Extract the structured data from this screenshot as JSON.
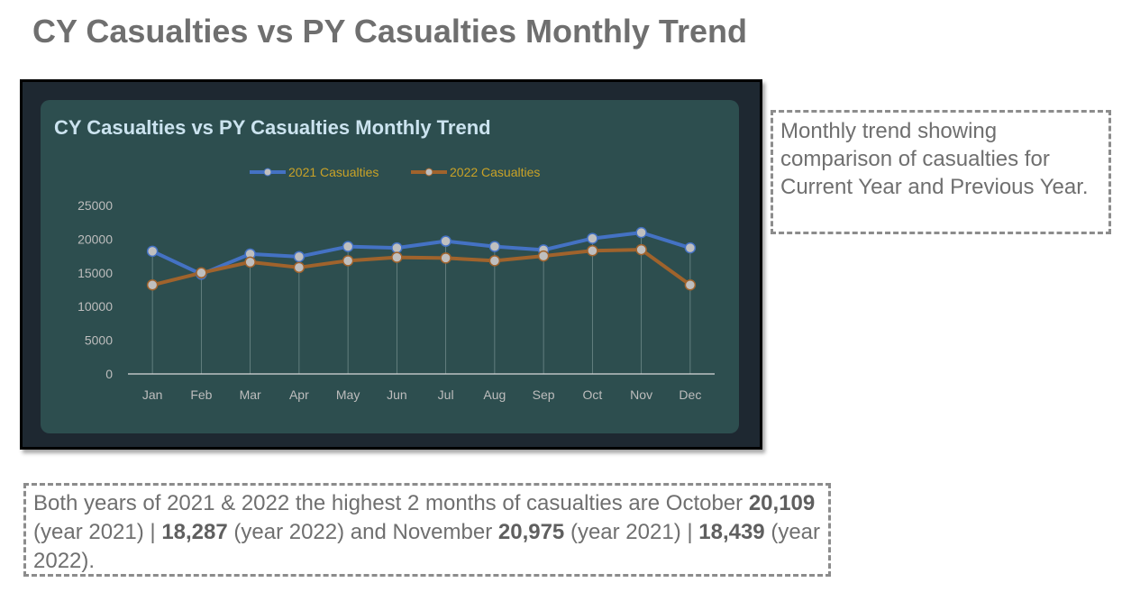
{
  "page": {
    "title": "CY Casualties vs PY Casualties Monthly Trend"
  },
  "notes": {
    "right_text": "Monthly trend showing comparison of casualties for Current Year and Previous Year.",
    "bottom": {
      "p1": "Both years of 2021 & 2022 the highest 2 months of casualties are October",
      "v1": "20,109",
      "p2": " (year 2021) | ",
      "v2": "18,287",
      "p3": " (year 2022) and November ",
      "v3": "20,975",
      "p4": " (year 2021) | ",
      "v4": "18,439",
      "p5": " (year 2022)."
    }
  },
  "chart_data": {
    "type": "line",
    "title": "CY Casualties vs PY Casualties Monthly Trend",
    "categories": [
      "Jan",
      "Feb",
      "Mar",
      "Apr",
      "May",
      "Jun",
      "Jul",
      "Aug",
      "Sep",
      "Oct",
      "Nov",
      "Dec"
    ],
    "series": [
      {
        "name": "2021 Casualties",
        "color": "#4472c4",
        "values": [
          18200,
          14800,
          17800,
          17400,
          18900,
          18700,
          19700,
          18900,
          18400,
          20109,
          20975,
          18700
        ]
      },
      {
        "name": "2022 Casualties",
        "color": "#a0632c",
        "values": [
          13200,
          15000,
          16600,
          15800,
          16800,
          17300,
          17200,
          16800,
          17500,
          18287,
          18439,
          13200
        ]
      }
    ],
    "ylim": [
      0,
      25000
    ],
    "yticks": [
      0,
      5000,
      10000,
      15000,
      20000,
      25000
    ],
    "legend_position": "top",
    "grid": false,
    "background": "#2d4e4f",
    "text_color": "#bdbdbd",
    "legend_text_color": "#c9a227",
    "title_color": "#cbe3ef"
  }
}
